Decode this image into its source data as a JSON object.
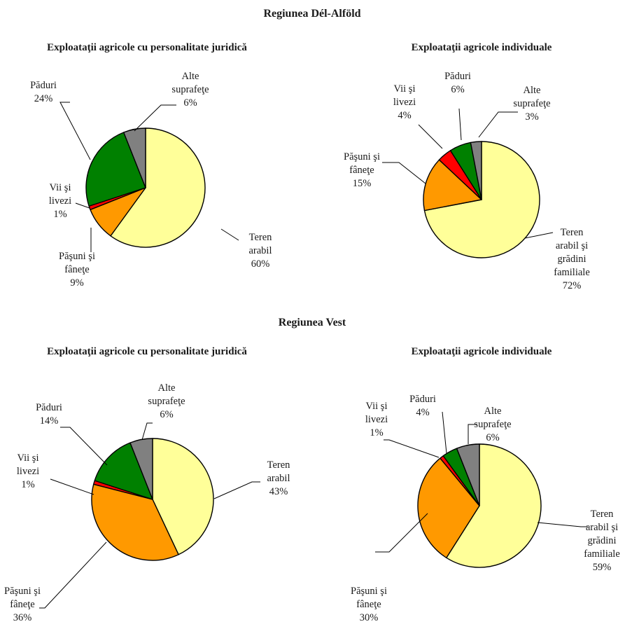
{
  "region_titles": [
    "Regiunea Dél-Alföld",
    "Regiunea Vest"
  ],
  "colors": {
    "Teren arabil": "#ffff99",
    "Pășuni și fânețe": "#ff9900",
    "Vii și livezi": "#ff0000",
    "Păduri": "#008000",
    "Alte suprafețe": "#808080"
  },
  "chart_data": [
    {
      "type": "pie",
      "region": "Regiunea Dél-Alföld",
      "title": "Exploataţii agricole cu personalitate juridică",
      "slices": [
        {
          "key": "Teren arabil",
          "label": [
            "Teren",
            "arabil",
            "60%"
          ],
          "value": 60
        },
        {
          "key": "Pășuni și fânețe",
          "label": [
            "Păşuni şi",
            "fâneţe",
            "9%"
          ],
          "value": 9
        },
        {
          "key": "Vii și livezi",
          "label": [
            "Vii şi",
            "livezi",
            "1%"
          ],
          "value": 1
        },
        {
          "key": "Păduri",
          "label": [
            "Păduri",
            "24%"
          ],
          "value": 24
        },
        {
          "key": "Alte suprafețe",
          "label": [
            "Alte",
            "suprafeţe",
            "6%"
          ],
          "value": 6
        }
      ]
    },
    {
      "type": "pie",
      "region": "Regiunea Dél-Alföld",
      "title": "Exploataţii agricole individuale",
      "slices": [
        {
          "key": "Teren arabil",
          "label": [
            "Teren",
            "arabil şi",
            "grădini",
            "familiale",
            "72%"
          ],
          "value": 72
        },
        {
          "key": "Pășuni și fânețe",
          "label": [
            "Păşuni şi",
            "fâneţe",
            "15%"
          ],
          "value": 15
        },
        {
          "key": "Vii și livezi",
          "label": [
            "Vii şi",
            "livezi",
            "4%"
          ],
          "value": 4
        },
        {
          "key": "Păduri",
          "label": [
            "Păduri",
            "6%"
          ],
          "value": 6
        },
        {
          "key": "Alte suprafețe",
          "label": [
            "Alte",
            "suprafeţe",
            "3%"
          ],
          "value": 3
        }
      ]
    },
    {
      "type": "pie",
      "region": "Regiunea Vest",
      "title": "Exploataţii agricole cu personalitate juridică",
      "slices": [
        {
          "key": "Teren arabil",
          "label": [
            "Teren",
            "arabil",
            "43%"
          ],
          "value": 43
        },
        {
          "key": "Pășuni și fânețe",
          "label": [
            "Păşuni şi",
            "fâneţe",
            "36%"
          ],
          "value": 36
        },
        {
          "key": "Vii și livezi",
          "label": [
            "Vii şi",
            "livezi",
            "1%"
          ],
          "value": 1
        },
        {
          "key": "Păduri",
          "label": [
            "Păduri",
            "14%"
          ],
          "value": 14
        },
        {
          "key": "Alte suprafețe",
          "label": [
            "Alte",
            "suprafeţe",
            "6%"
          ],
          "value": 6
        }
      ]
    },
    {
      "type": "pie",
      "region": "Regiunea Vest",
      "title": "Exploataţii agricole individuale",
      "slices": [
        {
          "key": "Teren arabil",
          "label": [
            "Teren",
            "arabil şi",
            "grădini",
            "familiale",
            "59%"
          ],
          "value": 59
        },
        {
          "key": "Pășuni și fânețe",
          "label": [
            "Păşuni şi",
            "fâneţe",
            "30%"
          ],
          "value": 30
        },
        {
          "key": "Vii și livezi",
          "label": [
            "Vii şi",
            "livezi",
            "1%"
          ],
          "value": 1
        },
        {
          "key": "Păduri",
          "label": [
            "Păduri",
            "4%"
          ],
          "value": 4
        },
        {
          "key": "Alte suprafețe",
          "label": [
            "Alte",
            "suprafeţe",
            "6%"
          ],
          "value": 6
        }
      ]
    }
  ]
}
